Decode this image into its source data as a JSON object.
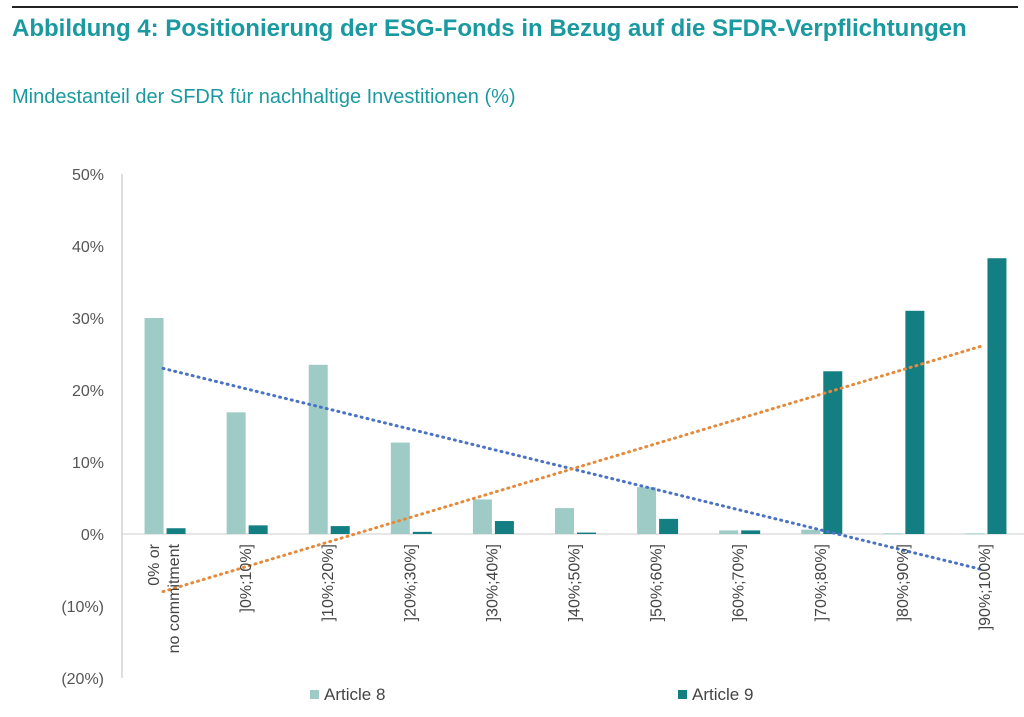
{
  "header": {
    "title": "Abbildung 4: Positionierung der ESG-Fonds in Bezug auf die SFDR-Verpflichtungen",
    "subtitle": "Mindestanteil der SFDR für nachhaltige Investitionen (%)"
  },
  "chart_data": {
    "type": "bar",
    "categories": [
      "0% or no commitment",
      "]0%;10%]",
      "]10%;20%]",
      "]20%;30%]",
      "]30%;40%]",
      "]40%;50%]",
      "]50%;60%]",
      "]60%;70%]",
      "]70%;80%]",
      "]80%;90%]",
      "]90%;100%]"
    ],
    "y_ticks": [
      "50%",
      "40%",
      "30%",
      "20%",
      "10%",
      "0%",
      "(10%)",
      "(20%)"
    ],
    "ylim": [
      -20,
      50
    ],
    "series": [
      {
        "name": "Article 8",
        "color": "#9fcbc6",
        "values": [
          30.0,
          16.9,
          23.5,
          12.7,
          4.8,
          3.6,
          6.5,
          0.5,
          0.6,
          0.1,
          0.1
        ]
      },
      {
        "name": "Article 9",
        "color": "#137f83",
        "values": [
          0.8,
          1.2,
          1.1,
          0.3,
          1.8,
          0.2,
          2.1,
          0.5,
          22.6,
          31.0,
          38.3
        ]
      }
    ],
    "trendlines": [
      {
        "series": "Article 8",
        "color": "#4a72c4",
        "start": 23.0,
        "end": -5.0
      },
      {
        "series": "Article 9",
        "color": "#e58a3a",
        "start": -8.0,
        "end": 26.2
      }
    ],
    "legend_position": "bottom",
    "grid": false
  }
}
